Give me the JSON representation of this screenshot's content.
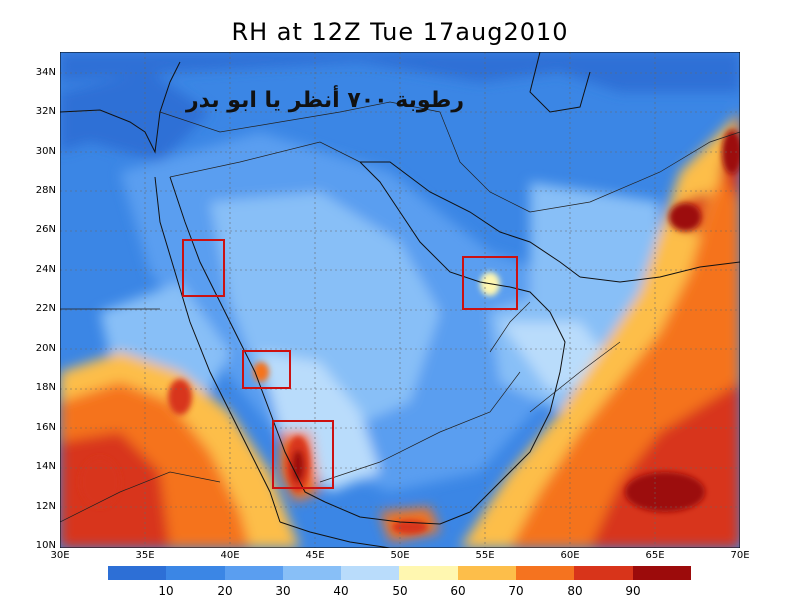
{
  "title": "RH at 12Z Tue 17aug2010",
  "annotation": "رطوبة ٧٠٠ أنظر يا ابو بدر",
  "lat_labels": [
    "34N",
    "32N",
    "30N",
    "28N",
    "26N",
    "24N",
    "22N",
    "20N",
    "18N",
    "16N",
    "14N",
    "12N",
    "10N"
  ],
  "lon_labels": [
    "30E",
    "35E",
    "40E",
    "45E",
    "50E",
    "55E",
    "60E",
    "65E",
    "70E"
  ],
  "colorbar": {
    "labels": [
      "10",
      "20",
      "30",
      "40",
      "50",
      "60",
      "70",
      "80",
      "90"
    ],
    "colors": [
      "#2d6fd6",
      "#3b86e5",
      "#5a9ef0",
      "#88bff7",
      "#b9dcfb",
      "#fff7b0",
      "#fdbe4a",
      "#f5731f",
      "#d8341a",
      "#9c0b0b"
    ]
  },
  "highlight_boxes": [
    {
      "name": "western-saudi-box"
    },
    {
      "name": "asir-box"
    },
    {
      "name": "yemen-box"
    },
    {
      "name": "uae-box"
    }
  ]
}
